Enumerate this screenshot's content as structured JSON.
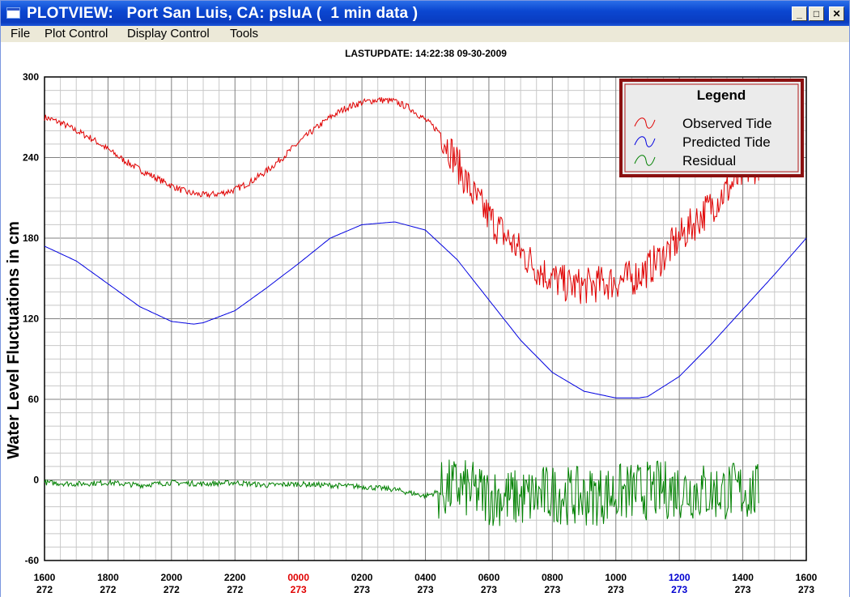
{
  "window": {
    "title": "PLOTVIEW:   Port San Luis, CA: psluA (  1 min data )",
    "minimize_label": "_",
    "maximize_label": "□",
    "close_label": "✕"
  },
  "menu": {
    "items": [
      {
        "label": "File"
      },
      {
        "label": "Plot Control"
      },
      {
        "label": "Display Control"
      },
      {
        "label": "Tools"
      }
    ]
  },
  "plot": {
    "lastupdate": "LASTUPDATE: 14:22:38  09-30-2009"
  },
  "chart_data": {
    "type": "line",
    "title": "LASTUPDATE: 14:22:38  09-30-2009",
    "ylabel": "Water Level Fluctuations in cm",
    "xlabel": "",
    "ylim": [
      -60,
      300
    ],
    "yticks": [
      300,
      240,
      180,
      120,
      60,
      0,
      -60
    ],
    "xlim": [
      0,
      24
    ],
    "grid": true,
    "legend_position": "top-right",
    "legend_title": "Legend",
    "x_tick_labels": [
      {
        "time": "1600",
        "day": "272",
        "color": "#000000"
      },
      {
        "time": "1800",
        "day": "272",
        "color": "#000000"
      },
      {
        "time": "2000",
        "day": "272",
        "color": "#000000"
      },
      {
        "time": "2200",
        "day": "272",
        "color": "#000000"
      },
      {
        "time": "0000",
        "day": "273",
        "color": "#e00000"
      },
      {
        "time": "0200",
        "day": "273",
        "color": "#000000"
      },
      {
        "time": "0400",
        "day": "273",
        "color": "#000000"
      },
      {
        "time": "0600",
        "day": "273",
        "color": "#000000"
      },
      {
        "time": "0800",
        "day": "273",
        "color": "#000000"
      },
      {
        "time": "1000",
        "day": "273",
        "color": "#000000"
      },
      {
        "time": "1200",
        "day": "273",
        "color": "#0000d0"
      },
      {
        "time": "1400",
        "day": "273",
        "color": "#000000"
      },
      {
        "time": "1600",
        "day": "273",
        "color": "#000000"
      }
    ],
    "series": [
      {
        "name": "Observed Tide",
        "color": "#e00000",
        "x": [
          0,
          0.5,
          1,
          1.5,
          2,
          2.5,
          3,
          3.5,
          4,
          4.5,
          5,
          5.5,
          6,
          6.5,
          7,
          7.5,
          8,
          8.5,
          9,
          9.5,
          10,
          10.5,
          11,
          11.5,
          12,
          12.5,
          13,
          13.5,
          14,
          14.5,
          15,
          15.5,
          16,
          16.5,
          17,
          17.5,
          18,
          18.5,
          19,
          19.5,
          20,
          20.5,
          21,
          21.5,
          22,
          22.5
        ],
        "y": [
          270,
          266,
          260,
          254,
          246,
          238,
          231,
          225,
          219,
          214,
          212,
          213,
          216,
          222,
          230,
          240,
          251,
          261,
          270,
          277,
          281,
          283,
          282,
          277,
          268,
          258,
          236,
          212,
          196,
          182,
          170,
          158,
          150,
          145,
          144,
          146,
          148,
          150,
          157,
          167,
          180,
          192,
          204,
          216,
          228,
          236
        ]
      },
      {
        "name": "Predicted Tide",
        "color": "#0000e0",
        "x": [
          0,
          1,
          2,
          3,
          4,
          4.7,
          5,
          6,
          7,
          8,
          9,
          10,
          11,
          11.05,
          12,
          13,
          14,
          15,
          16,
          17,
          18,
          18.7,
          19,
          20,
          21,
          22,
          23,
          24
        ],
        "y": [
          174,
          163,
          146,
          129,
          118,
          116,
          117,
          126,
          143,
          161,
          180,
          190,
          192,
          192,
          186,
          164,
          134,
          104,
          80,
          66,
          61,
          61,
          62,
          77,
          101,
          127,
          153,
          180
        ]
      },
      {
        "name": "Residual",
        "color": "#008000",
        "x": [
          0,
          1,
          2,
          3,
          4,
          5,
          6,
          7,
          8,
          9,
          10,
          11,
          12,
          12.5,
          13,
          14,
          15,
          16,
          17,
          18,
          19,
          20,
          21,
          22,
          22.5
        ],
        "y": [
          -2,
          -3,
          -2,
          -4,
          -2,
          -3,
          -2,
          -4,
          -3,
          -4,
          -5,
          -7,
          -12,
          -8,
          -5,
          -12,
          -14,
          -10,
          -13,
          -10,
          -8,
          -7,
          -9,
          -8,
          -10
        ]
      }
    ]
  }
}
